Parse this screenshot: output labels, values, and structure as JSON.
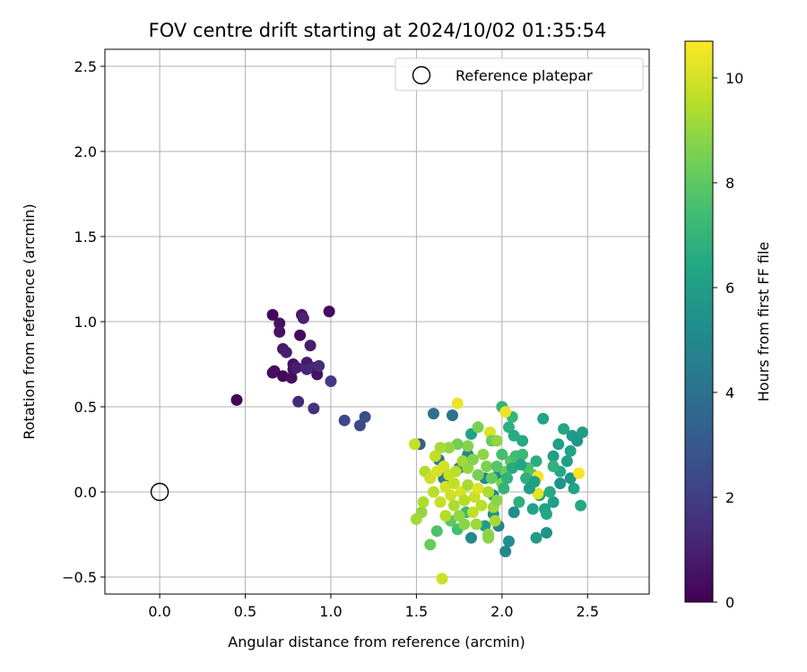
{
  "chart_data": {
    "type": "scatter",
    "title": "FOV centre drift starting at 2024/10/02 01:35:54",
    "xlabel": "Angular distance from reference (arcmin)",
    "ylabel": "Rotation from reference (arcmin)",
    "xlim": [
      -0.32,
      2.86
    ],
    "ylim": [
      -0.6,
      2.6
    ],
    "xticks": [
      0.0,
      0.5,
      1.0,
      1.5,
      2.0,
      2.5
    ],
    "xtick_labels": [
      "0.0",
      "0.5",
      "1.0",
      "1.5",
      "2.0",
      "2.5"
    ],
    "yticks": [
      -0.5,
      0.0,
      0.5,
      1.0,
      1.5,
      2.0,
      2.5
    ],
    "ytick_labels": [
      "−0.5",
      "0.0",
      "0.5",
      "1.0",
      "1.5",
      "2.0",
      "2.5"
    ],
    "grid": true,
    "legend": {
      "position": "top-right",
      "entries": [
        "Reference platepar"
      ]
    },
    "reference_point": {
      "x": 0.0,
      "y": 0.0
    },
    "colorbar": {
      "label": "Hours from first FF file",
      "min": 0,
      "max": 10.7,
      "ticks": [
        0,
        2,
        4,
        6,
        8,
        10
      ],
      "tick_labels": [
        "0",
        "2",
        "4",
        "6",
        "8",
        "10"
      ],
      "colormap": "viridis"
    },
    "points": [
      [
        0.45,
        0.54,
        0.1
      ],
      [
        0.66,
        1.04,
        0.2
      ],
      [
        0.7,
        0.99,
        0.5
      ],
      [
        0.7,
        0.94,
        0.6
      ],
      [
        0.66,
        0.7,
        0.3
      ],
      [
        0.67,
        0.71,
        0.4
      ],
      [
        0.72,
        0.68,
        0.2
      ],
      [
        0.72,
        0.84,
        0.8
      ],
      [
        0.74,
        0.82,
        0.9
      ],
      [
        0.77,
        0.67,
        0.4
      ],
      [
        0.78,
        0.75,
        0.5
      ],
      [
        0.78,
        0.72,
        0.6
      ],
      [
        0.8,
        0.73,
        0.9
      ],
      [
        0.81,
        0.53,
        1.3
      ],
      [
        0.82,
        0.92,
        0.3
      ],
      [
        0.83,
        1.04,
        0.7
      ],
      [
        0.84,
        1.02,
        1.0
      ],
      [
        0.86,
        0.76,
        0.8
      ],
      [
        0.86,
        0.72,
        1.1
      ],
      [
        0.88,
        0.86,
        0.9
      ],
      [
        0.9,
        0.49,
        1.6
      ],
      [
        0.9,
        0.73,
        1.3
      ],
      [
        0.92,
        0.69,
        0.5
      ],
      [
        0.93,
        0.74,
        1.4
      ],
      [
        0.99,
        1.06,
        0.3
      ],
      [
        1.0,
        0.65,
        1.8
      ],
      [
        1.08,
        0.42,
        2.3
      ],
      [
        1.17,
        0.39,
        2.4
      ],
      [
        1.2,
        0.44,
        2.6
      ],
      [
        1.52,
        0.28,
        3.3
      ],
      [
        1.6,
        0.46,
        3.9
      ],
      [
        1.71,
        0.45,
        4.0
      ],
      [
        1.74,
        0.52,
        10.4
      ],
      [
        1.63,
        0.19,
        4.2
      ],
      [
        1.66,
        0.08,
        4.4
      ],
      [
        1.75,
        0.14,
        4.6
      ],
      [
        1.8,
        0.22,
        5.0
      ],
      [
        1.82,
        0.34,
        6.2
      ],
      [
        1.9,
        0.08,
        5.2
      ],
      [
        1.95,
        -0.02,
        5.0
      ],
      [
        1.98,
        0.1,
        5.3
      ],
      [
        2.0,
        0.5,
        7.0
      ],
      [
        2.04,
        0.38,
        6.8
      ],
      [
        2.06,
        0.44,
        7.1
      ],
      [
        2.07,
        0.33,
        6.6
      ],
      [
        2.12,
        0.3,
        6.5
      ],
      [
        2.2,
        0.18,
        6.7
      ],
      [
        2.24,
        0.43,
        6.3
      ],
      [
        2.3,
        0.21,
        6.0
      ],
      [
        2.33,
        0.28,
        6.1
      ],
      [
        2.36,
        0.37,
        6.4
      ],
      [
        2.38,
        0.18,
        6.0
      ],
      [
        2.41,
        0.33,
        5.8
      ],
      [
        2.44,
        0.3,
        5.6
      ],
      [
        2.47,
        0.35,
        5.9
      ],
      [
        2.4,
        0.24,
        6.2
      ],
      [
        2.34,
        0.12,
        6.5
      ],
      [
        2.34,
        0.05,
        5.4
      ],
      [
        2.4,
        0.08,
        5.6
      ],
      [
        2.42,
        0.02,
        6.3
      ],
      [
        2.46,
        -0.08,
        6.5
      ],
      [
        2.3,
        -0.06,
        6.0
      ],
      [
        2.25,
        -0.1,
        6.1
      ],
      [
        2.26,
        -0.13,
        6.4
      ],
      [
        2.22,
        -0.02,
        5.7
      ],
      [
        2.18,
        -0.1,
        6.2
      ],
      [
        2.2,
        -0.27,
        5.9
      ],
      [
        2.26,
        -0.24,
        5.5
      ],
      [
        2.1,
        -0.06,
        6.8
      ],
      [
        2.07,
        -0.12,
        5.2
      ],
      [
        2.04,
        -0.29,
        5.3
      ],
      [
        2.02,
        -0.35,
        5.0
      ],
      [
        1.98,
        -0.2,
        4.8
      ],
      [
        1.95,
        -0.13,
        5.2
      ],
      [
        1.9,
        -0.2,
        6.0
      ],
      [
        1.82,
        -0.27,
        5.1
      ],
      [
        1.79,
        -0.12,
        7.2
      ],
      [
        1.74,
        -0.22,
        7.5
      ],
      [
        1.7,
        -0.17,
        8.0
      ],
      [
        1.62,
        -0.23,
        7.7
      ],
      [
        1.58,
        -0.31,
        8.2
      ],
      [
        1.53,
        -0.12,
        9.0
      ],
      [
        1.5,
        -0.16,
        9.2
      ],
      [
        1.54,
        -0.06,
        9.4
      ],
      [
        1.6,
        0.0,
        9.6
      ],
      [
        1.64,
        -0.06,
        9.8
      ],
      [
        1.67,
        0.03,
        10.0
      ],
      [
        1.7,
        -0.02,
        9.9
      ],
      [
        1.72,
        0.05,
        9.7
      ],
      [
        1.76,
        0.0,
        10.1
      ],
      [
        1.78,
        -0.05,
        9.5
      ],
      [
        1.8,
        0.04,
        9.3
      ],
      [
        1.84,
        -0.03,
        9.8
      ],
      [
        1.86,
        0.02,
        10.2
      ],
      [
        1.88,
        -0.08,
        9.6
      ],
      [
        1.92,
        0.0,
        9.4
      ],
      [
        1.95,
        -0.09,
        9.1
      ],
      [
        1.97,
        -0.05,
        8.8
      ],
      [
        2.0,
        0.05,
        8.6
      ],
      [
        2.02,
        0.12,
        8.3
      ],
      [
        2.05,
        0.18,
        8.0
      ],
      [
        2.08,
        0.21,
        7.4
      ],
      [
        2.12,
        0.22,
        7.2
      ],
      [
        2.15,
        0.14,
        7.6
      ],
      [
        2.18,
        0.1,
        7.8
      ],
      [
        2.21,
        0.09,
        10.5
      ],
      [
        2.21,
        -0.01,
        10.3
      ],
      [
        2.45,
        0.11,
        10.6
      ],
      [
        2.02,
        0.47,
        10.4
      ],
      [
        1.93,
        0.35,
        10.1
      ],
      [
        1.86,
        0.38,
        8.5
      ],
      [
        1.94,
        0.3,
        8.2
      ],
      [
        1.97,
        0.3,
        8.9
      ],
      [
        1.8,
        0.27,
        8.7
      ],
      [
        1.74,
        0.28,
        8.4
      ],
      [
        1.69,
        0.26,
        9.0
      ],
      [
        1.64,
        0.26,
        9.3
      ],
      [
        1.61,
        0.21,
        9.7
      ],
      [
        1.55,
        0.12,
        9.5
      ],
      [
        1.49,
        0.28,
        9.8
      ],
      [
        1.58,
        0.08,
        9.9
      ],
      [
        1.62,
        0.12,
        10.1
      ],
      [
        1.66,
        0.15,
        10.0
      ],
      [
        1.69,
        0.1,
        9.8
      ],
      [
        1.73,
        0.12,
        9.6
      ],
      [
        1.77,
        0.18,
        9.2
      ],
      [
        1.8,
        0.14,
        9.0
      ],
      [
        1.83,
        0.19,
        8.7
      ],
      [
        1.86,
        0.1,
        8.5
      ],
      [
        1.89,
        0.22,
        8.9
      ],
      [
        1.91,
        0.15,
        8.6
      ],
      [
        1.94,
        0.08,
        8.2
      ],
      [
        1.97,
        0.15,
        7.9
      ],
      [
        2.0,
        0.22,
        7.5
      ],
      [
        1.85,
        -0.19,
        9.1
      ],
      [
        1.92,
        -0.25,
        8.9
      ],
      [
        1.96,
        -0.17,
        9.3
      ],
      [
        1.67,
        -0.14,
        9.5
      ],
      [
        1.72,
        -0.08,
        9.4
      ],
      [
        1.75,
        -0.14,
        9.0
      ],
      [
        1.78,
        -0.19,
        8.8
      ],
      [
        1.83,
        -0.12,
        9.7
      ],
      [
        1.65,
        -0.51,
        9.9
      ],
      [
        1.92,
        -0.27,
        8.8
      ],
      [
        2.01,
        0.02,
        7.0
      ],
      [
        2.03,
        0.08,
        6.9
      ],
      [
        2.06,
        0.14,
        6.6
      ],
      [
        2.11,
        0.16,
        6.3
      ],
      [
        2.14,
        0.08,
        6.8
      ],
      [
        2.16,
        0.02,
        5.9
      ],
      [
        2.19,
        0.06,
        6.1
      ],
      [
        2.28,
        0.0,
        6.6
      ],
      [
        2.3,
        0.15,
        6.9
      ]
    ]
  }
}
